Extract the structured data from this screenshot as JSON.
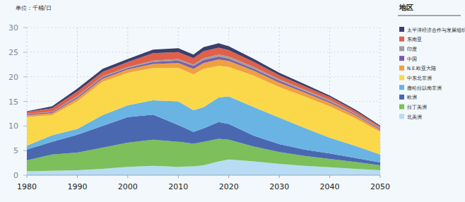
{
  "chart_data": {
    "type": "area",
    "stacked": true,
    "y_label": "单位：千桶/日",
    "legend_title": "地区",
    "legend": "right",
    "x": [
      1980,
      1985,
      1990,
      1995,
      2000,
      2005,
      2010,
      2013,
      2015,
      2018,
      2020,
      2025,
      2030,
      2035,
      2040,
      2045,
      2050
    ],
    "xlim": [
      1980,
      2050
    ],
    "xticks": [
      1980,
      1990,
      2000,
      2010,
      2020,
      2030,
      2040,
      2050
    ],
    "ylim": [
      0,
      30
    ],
    "yticks": [
      0,
      5,
      10,
      15,
      20,
      25,
      30
    ],
    "grid": true,
    "series": [
      {
        "name": "北美洲",
        "color": "#b8dcf4",
        "values": [
          0.8,
          0.9,
          1.0,
          1.3,
          1.7,
          1.9,
          1.7,
          1.8,
          2.0,
          2.8,
          3.2,
          2.8,
          2.3,
          1.9,
          1.6,
          1.3,
          1.0
        ]
      },
      {
        "name": "拉丁美洲",
        "color": "#7dbf5a",
        "values": [
          2.2,
          3.3,
          3.6,
          4.3,
          4.9,
          5.3,
          5.1,
          4.6,
          4.8,
          4.6,
          4.0,
          3.0,
          2.4,
          2.0,
          1.7,
          1.4,
          1.0
        ]
      },
      {
        "name": "欧洲",
        "color": "#4a68b0",
        "values": [
          2.2,
          2.6,
          3.6,
          4.4,
          5.2,
          5.1,
          3.4,
          2.4,
          2.7,
          3.4,
          3.2,
          2.2,
          1.6,
          1.3,
          1.1,
          0.8,
          0.6
        ]
      },
      {
        "name": "撒哈拉以南非洲",
        "color": "#6ab4e4",
        "values": [
          0.8,
          1.3,
          1.2,
          2.2,
          2.4,
          2.9,
          4.8,
          4.4,
          4.3,
          5.0,
          5.6,
          5.8,
          5.4,
          4.4,
          3.2,
          2.5,
          1.6
        ]
      },
      {
        "name": "中东北非洲",
        "color": "#fbd84a",
        "values": [
          5.8,
          4.1,
          5.6,
          6.8,
          6.6,
          6.6,
          6.8,
          7.3,
          7.8,
          6.4,
          6.0,
          6.4,
          6.2,
          6.4,
          6.4,
          5.6,
          4.6
        ]
      },
      {
        "name": "N.E.欧亚大陆",
        "color": "#f0a040",
        "values": [
          0.4,
          0.4,
          0.6,
          0.6,
          0.7,
          0.8,
          1.0,
          1.1,
          1.2,
          1.3,
          1.2,
          1.0,
          0.9,
          0.8,
          0.7,
          0.6,
          0.4
        ]
      },
      {
        "name": "中国",
        "color": "#7b5ea7",
        "values": [
          0.2,
          0.2,
          0.3,
          0.3,
          0.3,
          0.4,
          0.5,
          0.6,
          0.6,
          0.6,
          0.5,
          0.4,
          0.4,
          0.3,
          0.3,
          0.2,
          0.2
        ]
      },
      {
        "name": "印度",
        "color": "#9e9e9e",
        "values": [
          0.1,
          0.1,
          0.2,
          0.2,
          0.2,
          0.3,
          0.3,
          0.3,
          0.4,
          0.4,
          0.4,
          0.4,
          0.3,
          0.3,
          0.3,
          0.2,
          0.2
        ]
      },
      {
        "name": "东南亚",
        "color": "#e0604a",
        "values": [
          0.4,
          0.7,
          0.9,
          0.9,
          1.0,
          1.5,
          1.4,
          1.3,
          1.4,
          1.4,
          1.3,
          1.0,
          0.8,
          0.7,
          0.6,
          0.5,
          0.3
        ]
      },
      {
        "name": "太平洋经济合作与发展组织",
        "color": "#3b3f6b",
        "values": [
          0.1,
          0.4,
          0.6,
          0.6,
          0.6,
          0.7,
          0.8,
          0.7,
          0.8,
          0.9,
          0.8,
          0.6,
          0.5,
          0.4,
          0.3,
          0.3,
          0.2
        ]
      }
    ]
  }
}
